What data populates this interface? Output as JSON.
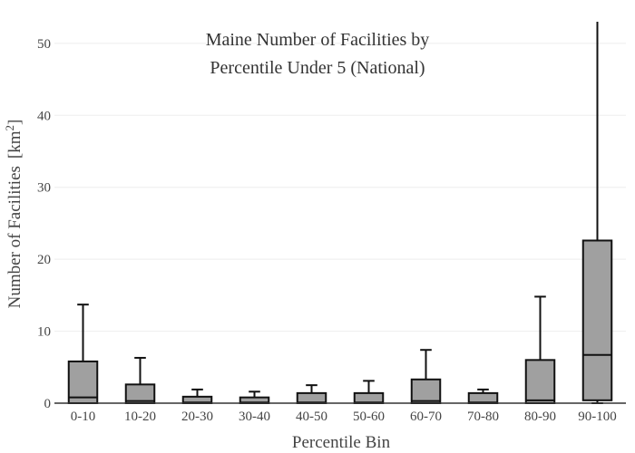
{
  "chart_data": {
    "type": "box",
    "title_lines": [
      "Maine Number of Facilities by",
      "Percentile Under 5 (National)"
    ],
    "xlabel": "Percentile Bin",
    "ylabel": "Number of Facilities",
    "ylabel_unit_base": "[km",
    "ylabel_unit_sup": "2",
    "ylabel_unit_end": "]",
    "ylim": [
      0,
      53
    ],
    "yticks": [
      0,
      10,
      20,
      30,
      40,
      50
    ],
    "grid": true,
    "colors": {
      "box_fill": "#a0a0a0",
      "box_stroke": "#111111"
    },
    "categories": [
      "0-10",
      "10-20",
      "20-30",
      "30-40",
      "40-50",
      "50-60",
      "60-70",
      "70-80",
      "80-90",
      "90-100"
    ],
    "boxes": [
      {
        "min": 0,
        "q1": 0,
        "median": 0.8,
        "q3": 5.8,
        "max": 13.7
      },
      {
        "min": 0,
        "q1": 0,
        "median": 0.3,
        "q3": 2.6,
        "max": 6.3
      },
      {
        "min": 0,
        "q1": 0,
        "median": 0.1,
        "q3": 0.9,
        "max": 1.9
      },
      {
        "min": 0,
        "q1": 0,
        "median": 0.1,
        "q3": 0.8,
        "max": 1.6
      },
      {
        "min": 0,
        "q1": 0,
        "median": 0.1,
        "q3": 1.4,
        "max": 2.5
      },
      {
        "min": 0,
        "q1": 0,
        "median": 0.1,
        "q3": 1.4,
        "max": 3.1
      },
      {
        "min": 0,
        "q1": 0,
        "median": 0.3,
        "q3": 3.3,
        "max": 7.4
      },
      {
        "min": 0,
        "q1": 0,
        "median": 0.1,
        "q3": 1.4,
        "max": 1.9
      },
      {
        "min": 0,
        "q1": 0,
        "median": 0.4,
        "q3": 6.0,
        "max": 14.8
      },
      {
        "min": 0,
        "q1": 0.4,
        "median": 6.7,
        "q3": 22.6,
        "max": 53
      }
    ]
  }
}
